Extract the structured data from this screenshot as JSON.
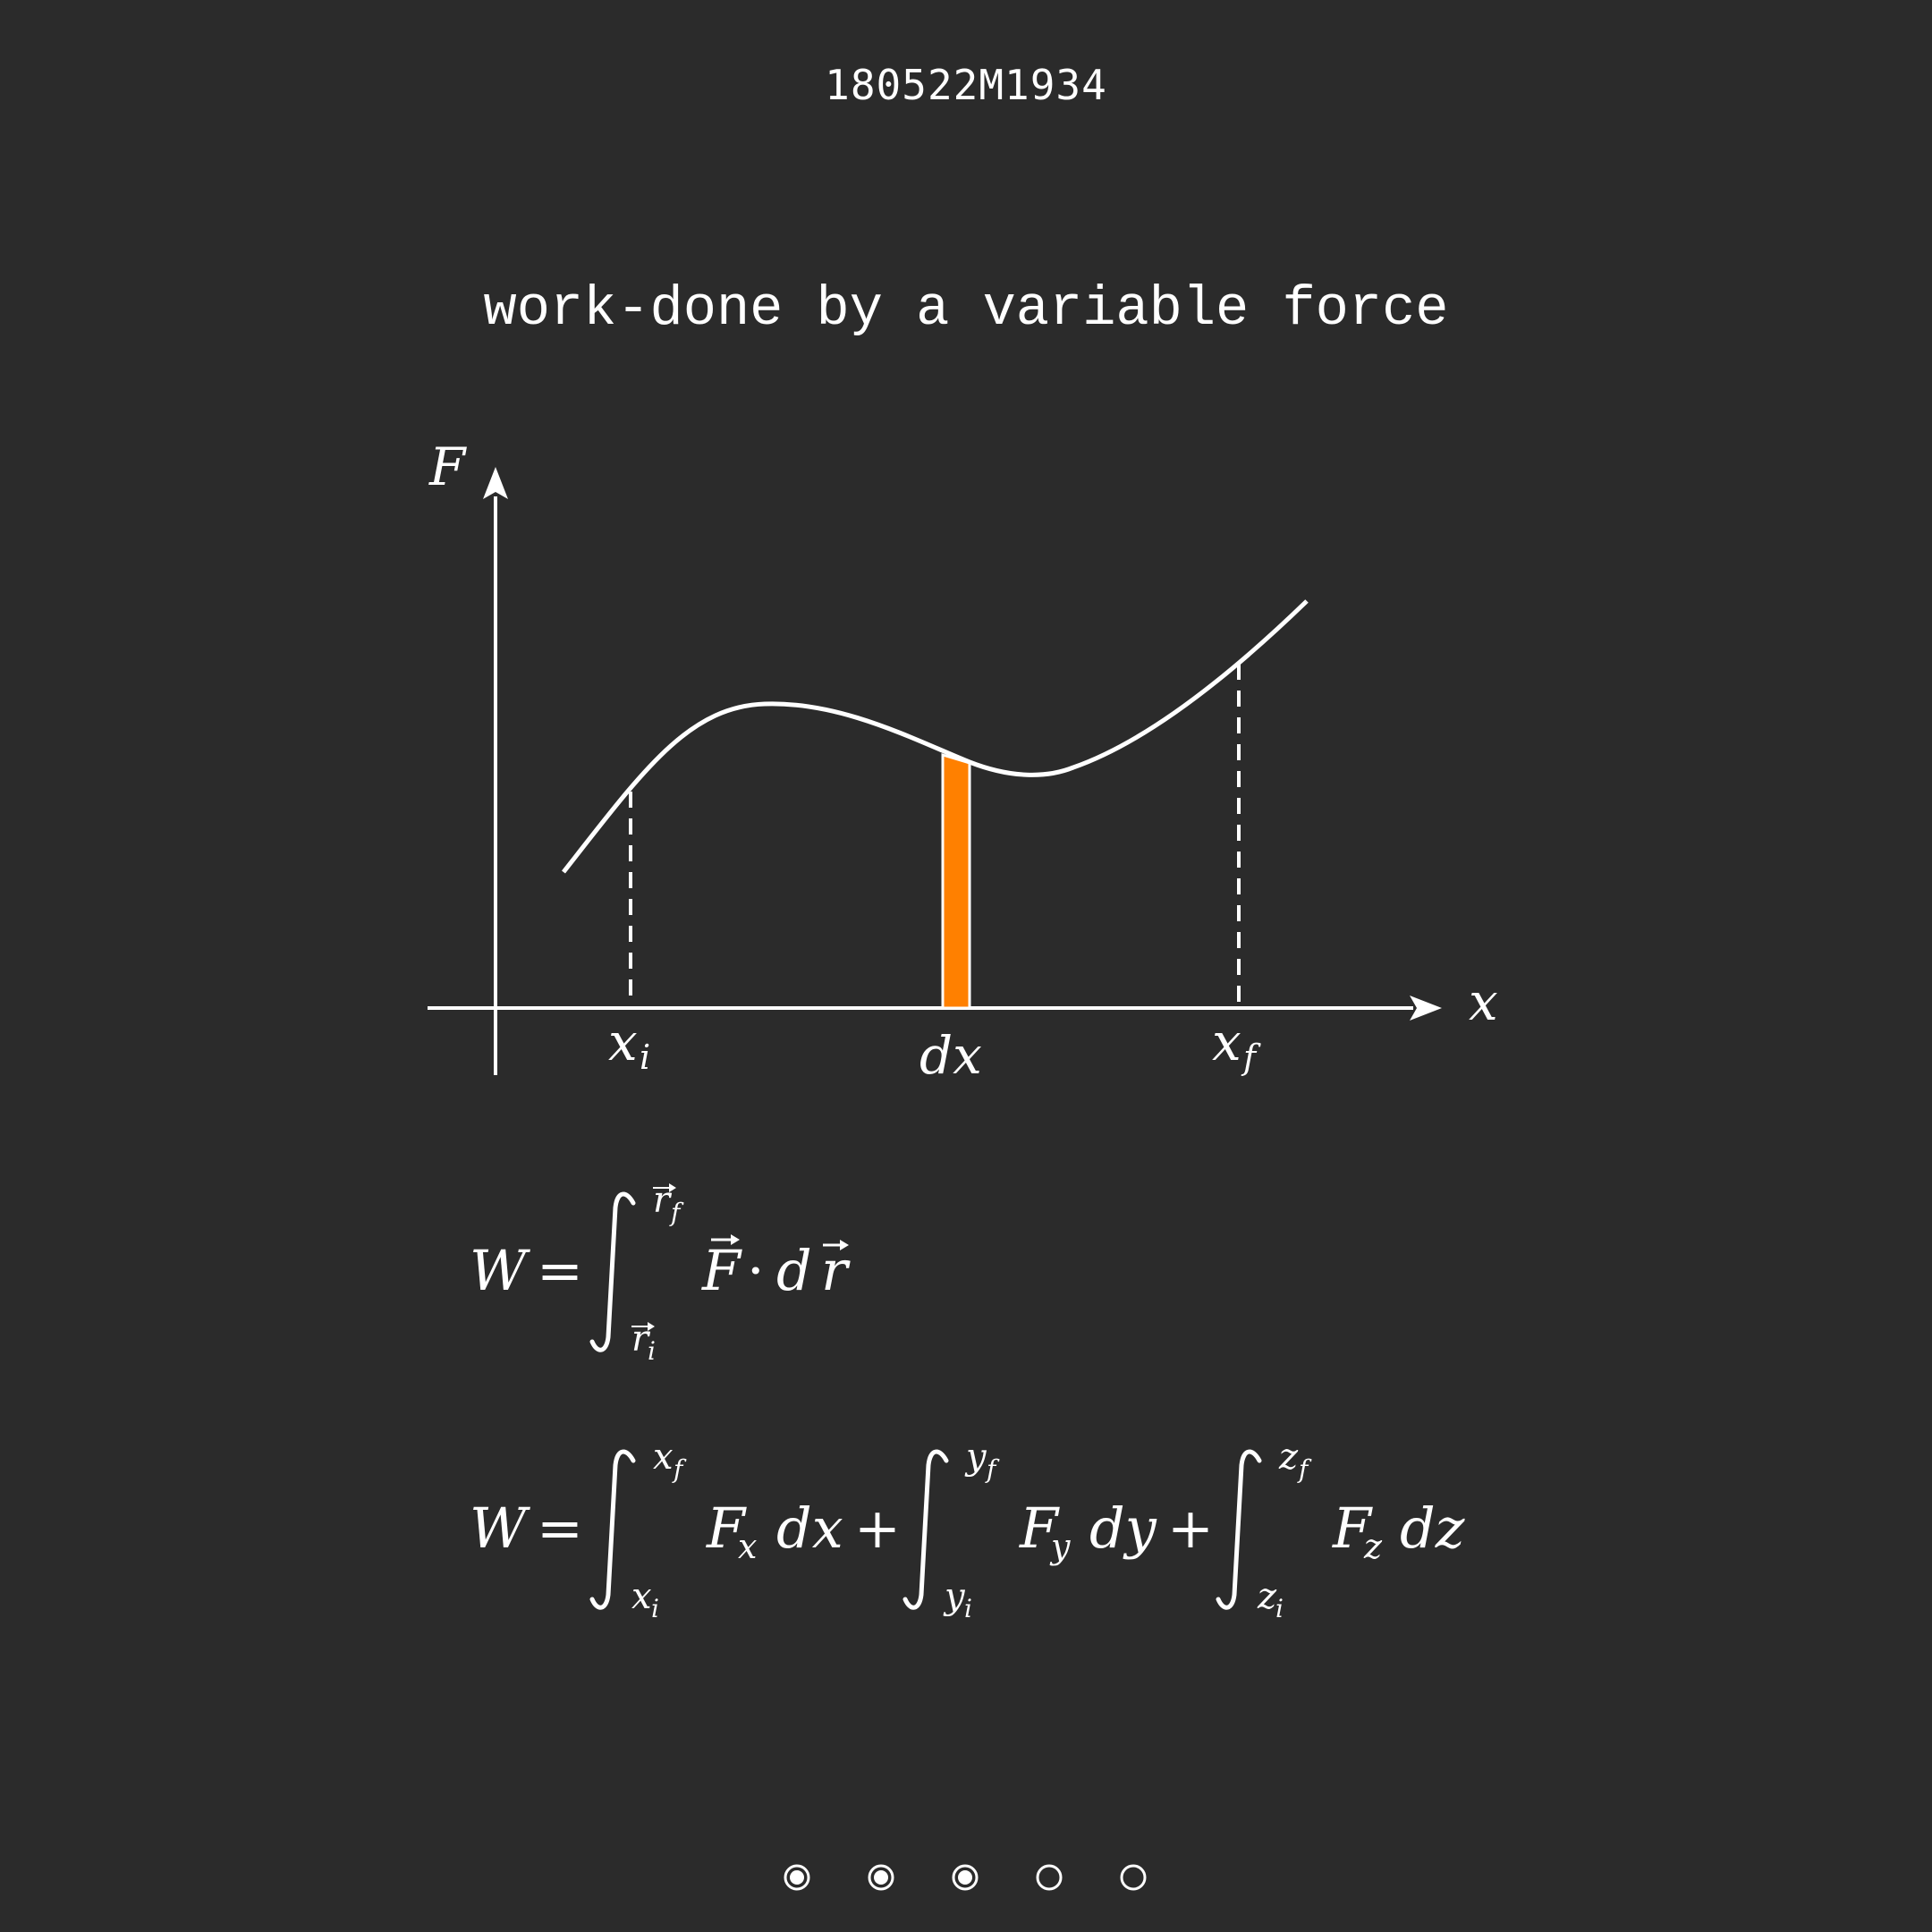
{
  "header": {
    "code": "180522M1934",
    "title": "work-done by a variable force"
  },
  "diagram": {
    "y_axis_label": "F",
    "x_axis_label": "x",
    "x_i_label": "x",
    "x_i_sub": "i",
    "dx_label": "dx",
    "x_f_label": "x",
    "x_f_sub": "f",
    "strip_color": "#ff8000",
    "curve_color": "#ffffff",
    "background": "#2b2b2b"
  },
  "equations": {
    "eq1": {
      "lhs": "W",
      "equals": "=",
      "upper": "r",
      "upper_sub": "f",
      "lower": "r",
      "lower_sub": "i",
      "integrand_F": "F",
      "dot": "·",
      "d": "d",
      "r": "r"
    },
    "eq2": {
      "lhs": "W",
      "equals": "=",
      "terms": [
        {
          "upper": "x",
          "upper_sub": "f",
          "lower": "x",
          "lower_sub": "i",
          "F": "F",
          "F_sub": "x",
          "diff": "dx",
          "plus": "+"
        },
        {
          "upper": "y",
          "upper_sub": "f",
          "lower": "y",
          "lower_sub": "i",
          "F": "F",
          "F_sub": "y",
          "diff": "dy",
          "plus": "+"
        },
        {
          "upper": "z",
          "upper_sub": "f",
          "lower": "z",
          "lower_sub": "i",
          "F": "F",
          "F_sub": "z",
          "diff": "dz",
          "plus": ""
        }
      ]
    }
  },
  "pagination": {
    "total": 5,
    "filled": [
      true,
      true,
      true,
      false,
      false
    ]
  }
}
